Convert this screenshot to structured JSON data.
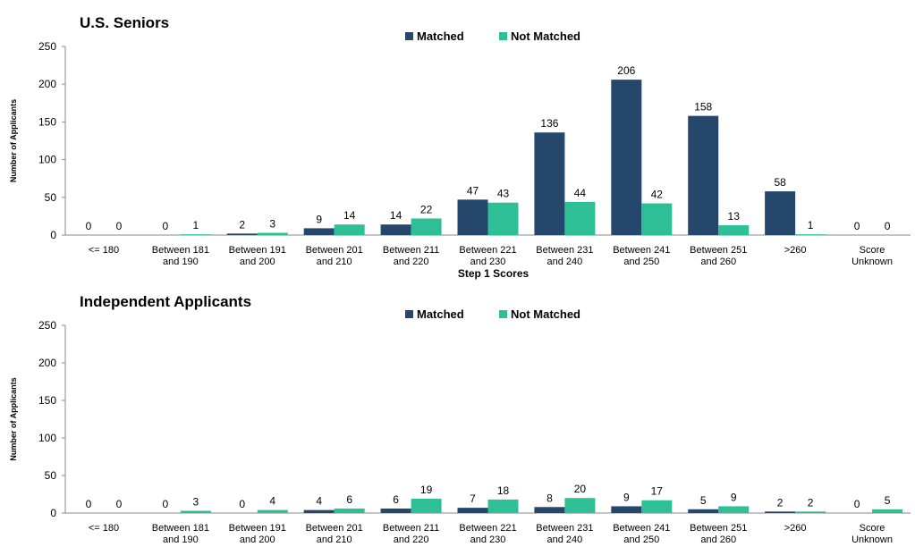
{
  "legend": {
    "matched": "Matched",
    "not_matched": "Not Matched"
  },
  "colors": {
    "matched": "#25476b",
    "not_matched": "#2fbf96"
  },
  "chart_data": [
    {
      "type": "bar",
      "title": "U.S. Seniors",
      "xlabel": "Step 1 Scores",
      "ylabel": "Number of Applicants",
      "ylim": [
        0,
        250
      ],
      "yticks": [
        0,
        50,
        100,
        150,
        200,
        250
      ],
      "categories": [
        [
          "<= 180"
        ],
        [
          "Between 181",
          "and 190"
        ],
        [
          "Between 191",
          "and 200"
        ],
        [
          "Between 201",
          "and 210"
        ],
        [
          "Between 211",
          "and 220"
        ],
        [
          "Between 221",
          "and 230"
        ],
        [
          "Between 231",
          "and 240"
        ],
        [
          "Between 241",
          "and 250"
        ],
        [
          "Between 251",
          "and 260"
        ],
        [
          ">260"
        ],
        [
          "Score",
          "Unknown"
        ]
      ],
      "series": [
        {
          "name": "Matched",
          "values": [
            0,
            0,
            2,
            9,
            14,
            47,
            136,
            206,
            158,
            58,
            0
          ]
        },
        {
          "name": "Not Matched",
          "values": [
            0,
            1,
            3,
            14,
            22,
            43,
            44,
            42,
            13,
            1,
            0
          ]
        }
      ]
    },
    {
      "type": "bar",
      "title": "Independent Applicants",
      "xlabel": "",
      "ylabel": "Number of Applicants",
      "ylim": [
        0,
        250
      ],
      "yticks": [
        0,
        50,
        100,
        150,
        200,
        250
      ],
      "categories": [
        [
          "<= 180"
        ],
        [
          "Between 181",
          "and 190"
        ],
        [
          "Between 191",
          "and 200"
        ],
        [
          "Between 201",
          "and 210"
        ],
        [
          "Between 211",
          "and 220"
        ],
        [
          "Between 221",
          "and 230"
        ],
        [
          "Between 231",
          "and 240"
        ],
        [
          "Between 241",
          "and 250"
        ],
        [
          "Between 251",
          "and 260"
        ],
        [
          ">260"
        ],
        [
          "Score",
          "Unknown"
        ]
      ],
      "series": [
        {
          "name": "Matched",
          "values": [
            0,
            0,
            0,
            4,
            6,
            7,
            8,
            9,
            5,
            2,
            0
          ]
        },
        {
          "name": "Not Matched",
          "values": [
            0,
            3,
            4,
            6,
            19,
            18,
            20,
            17,
            9,
            2,
            5
          ]
        }
      ]
    }
  ]
}
